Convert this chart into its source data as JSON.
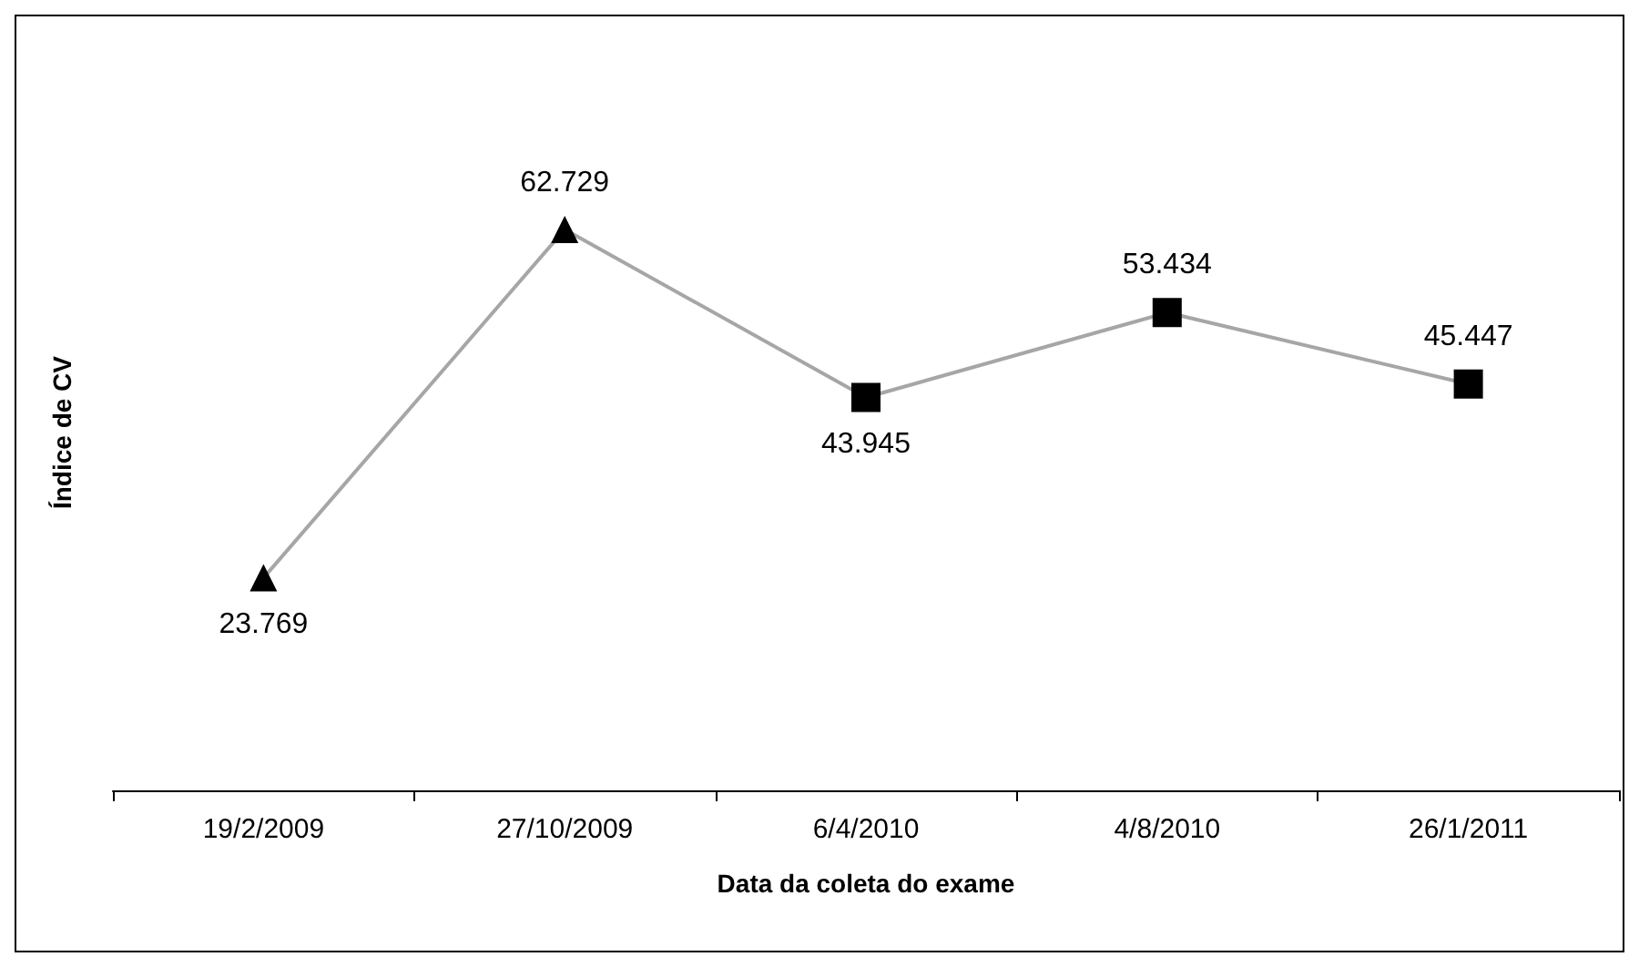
{
  "chart_data": {
    "type": "line",
    "xlabel": "Data da coleta do exame",
    "ylabel": "Índice de CV",
    "categories": [
      "19/2/2009",
      "27/10/2009",
      "6/4/2010",
      "4/8/2010",
      "26/1/2011"
    ],
    "series": [
      {
        "color": "#a6a6a6",
        "marker": [
          "triangle",
          "triangle",
          "square",
          "square",
          "square"
        ],
        "values": [
          23.769,
          62.729,
          43.945,
          53.434,
          45.447
        ]
      }
    ],
    "data_labels": true,
    "grid": false
  }
}
